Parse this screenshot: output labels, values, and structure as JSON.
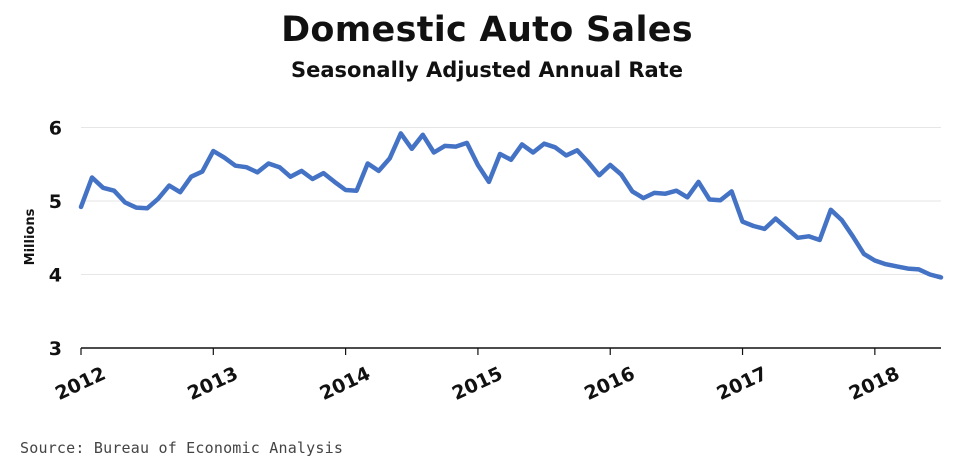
{
  "chart_data": {
    "type": "line",
    "title": "Domestic Auto Sales",
    "subtitle": "Seasonally Adjusted Annual Rate",
    "ylabel": "Millions",
    "xlabel": "",
    "source": "Source: Bureau of Economic Analysis",
    "ylim": [
      3,
      6.2
    ],
    "yticks": [
      3,
      4,
      5,
      6
    ],
    "xlim": [
      2012.0,
      2018.5
    ],
    "xticks": [
      2012,
      2013,
      2014,
      2015,
      2016,
      2017,
      2018
    ],
    "grid": true,
    "line_color": "#4472c4",
    "series": [
      {
        "x": [
          2012.0,
          2012.083,
          2012.167,
          2012.25,
          2012.333,
          2012.417,
          2012.5,
          2012.583,
          2012.667,
          2012.75,
          2012.833,
          2012.917,
          2013.0,
          2013.083,
          2013.167,
          2013.25,
          2013.333,
          2013.417,
          2013.5,
          2013.583,
          2013.667,
          2013.75,
          2013.833,
          2013.917,
          2014.0,
          2014.083,
          2014.167,
          2014.25,
          2014.333,
          2014.417,
          2014.5,
          2014.583,
          2014.667,
          2014.75,
          2014.833,
          2014.917,
          2015.0,
          2015.083,
          2015.167,
          2015.25,
          2015.333,
          2015.417,
          2015.5,
          2015.583,
          2015.667,
          2015.75,
          2015.833,
          2015.917,
          2016.0,
          2016.083,
          2016.167,
          2016.25,
          2016.333,
          2016.417,
          2016.5,
          2016.583,
          2016.667,
          2016.75,
          2016.833,
          2016.917,
          2017.0,
          2017.083,
          2017.167,
          2017.25,
          2017.333,
          2017.417,
          2017.5,
          2017.583,
          2017.667,
          2017.75,
          2017.833,
          2017.917,
          2018.0,
          2018.083,
          2018.167,
          2018.25,
          2018.333,
          2018.417,
          2018.5
        ],
        "values": [
          4.92,
          5.32,
          5.18,
          5.14,
          4.98,
          4.91,
          4.9,
          5.03,
          5.21,
          5.12,
          5.33,
          5.4,
          5.68,
          5.59,
          5.48,
          5.46,
          5.39,
          5.51,
          5.46,
          5.33,
          5.41,
          5.3,
          5.38,
          5.26,
          5.15,
          5.14,
          5.51,
          5.41,
          5.58,
          5.92,
          5.71,
          5.9,
          5.66,
          5.75,
          5.74,
          5.79,
          5.49,
          5.26,
          5.64,
          5.56,
          5.77,
          5.66,
          5.78,
          5.73,
          5.62,
          5.69,
          5.53,
          5.35,
          5.49,
          5.36,
          5.13,
          5.04,
          5.11,
          5.1,
          5.14,
          5.05,
          5.26,
          5.02,
          5.01,
          5.13,
          4.72,
          4.66,
          4.62,
          4.76,
          4.63,
          4.5,
          4.52,
          4.47,
          4.88,
          4.74,
          4.52,
          4.28,
          4.19,
          4.14,
          4.11,
          4.08,
          4.07,
          4.0,
          3.96
        ]
      }
    ]
  }
}
